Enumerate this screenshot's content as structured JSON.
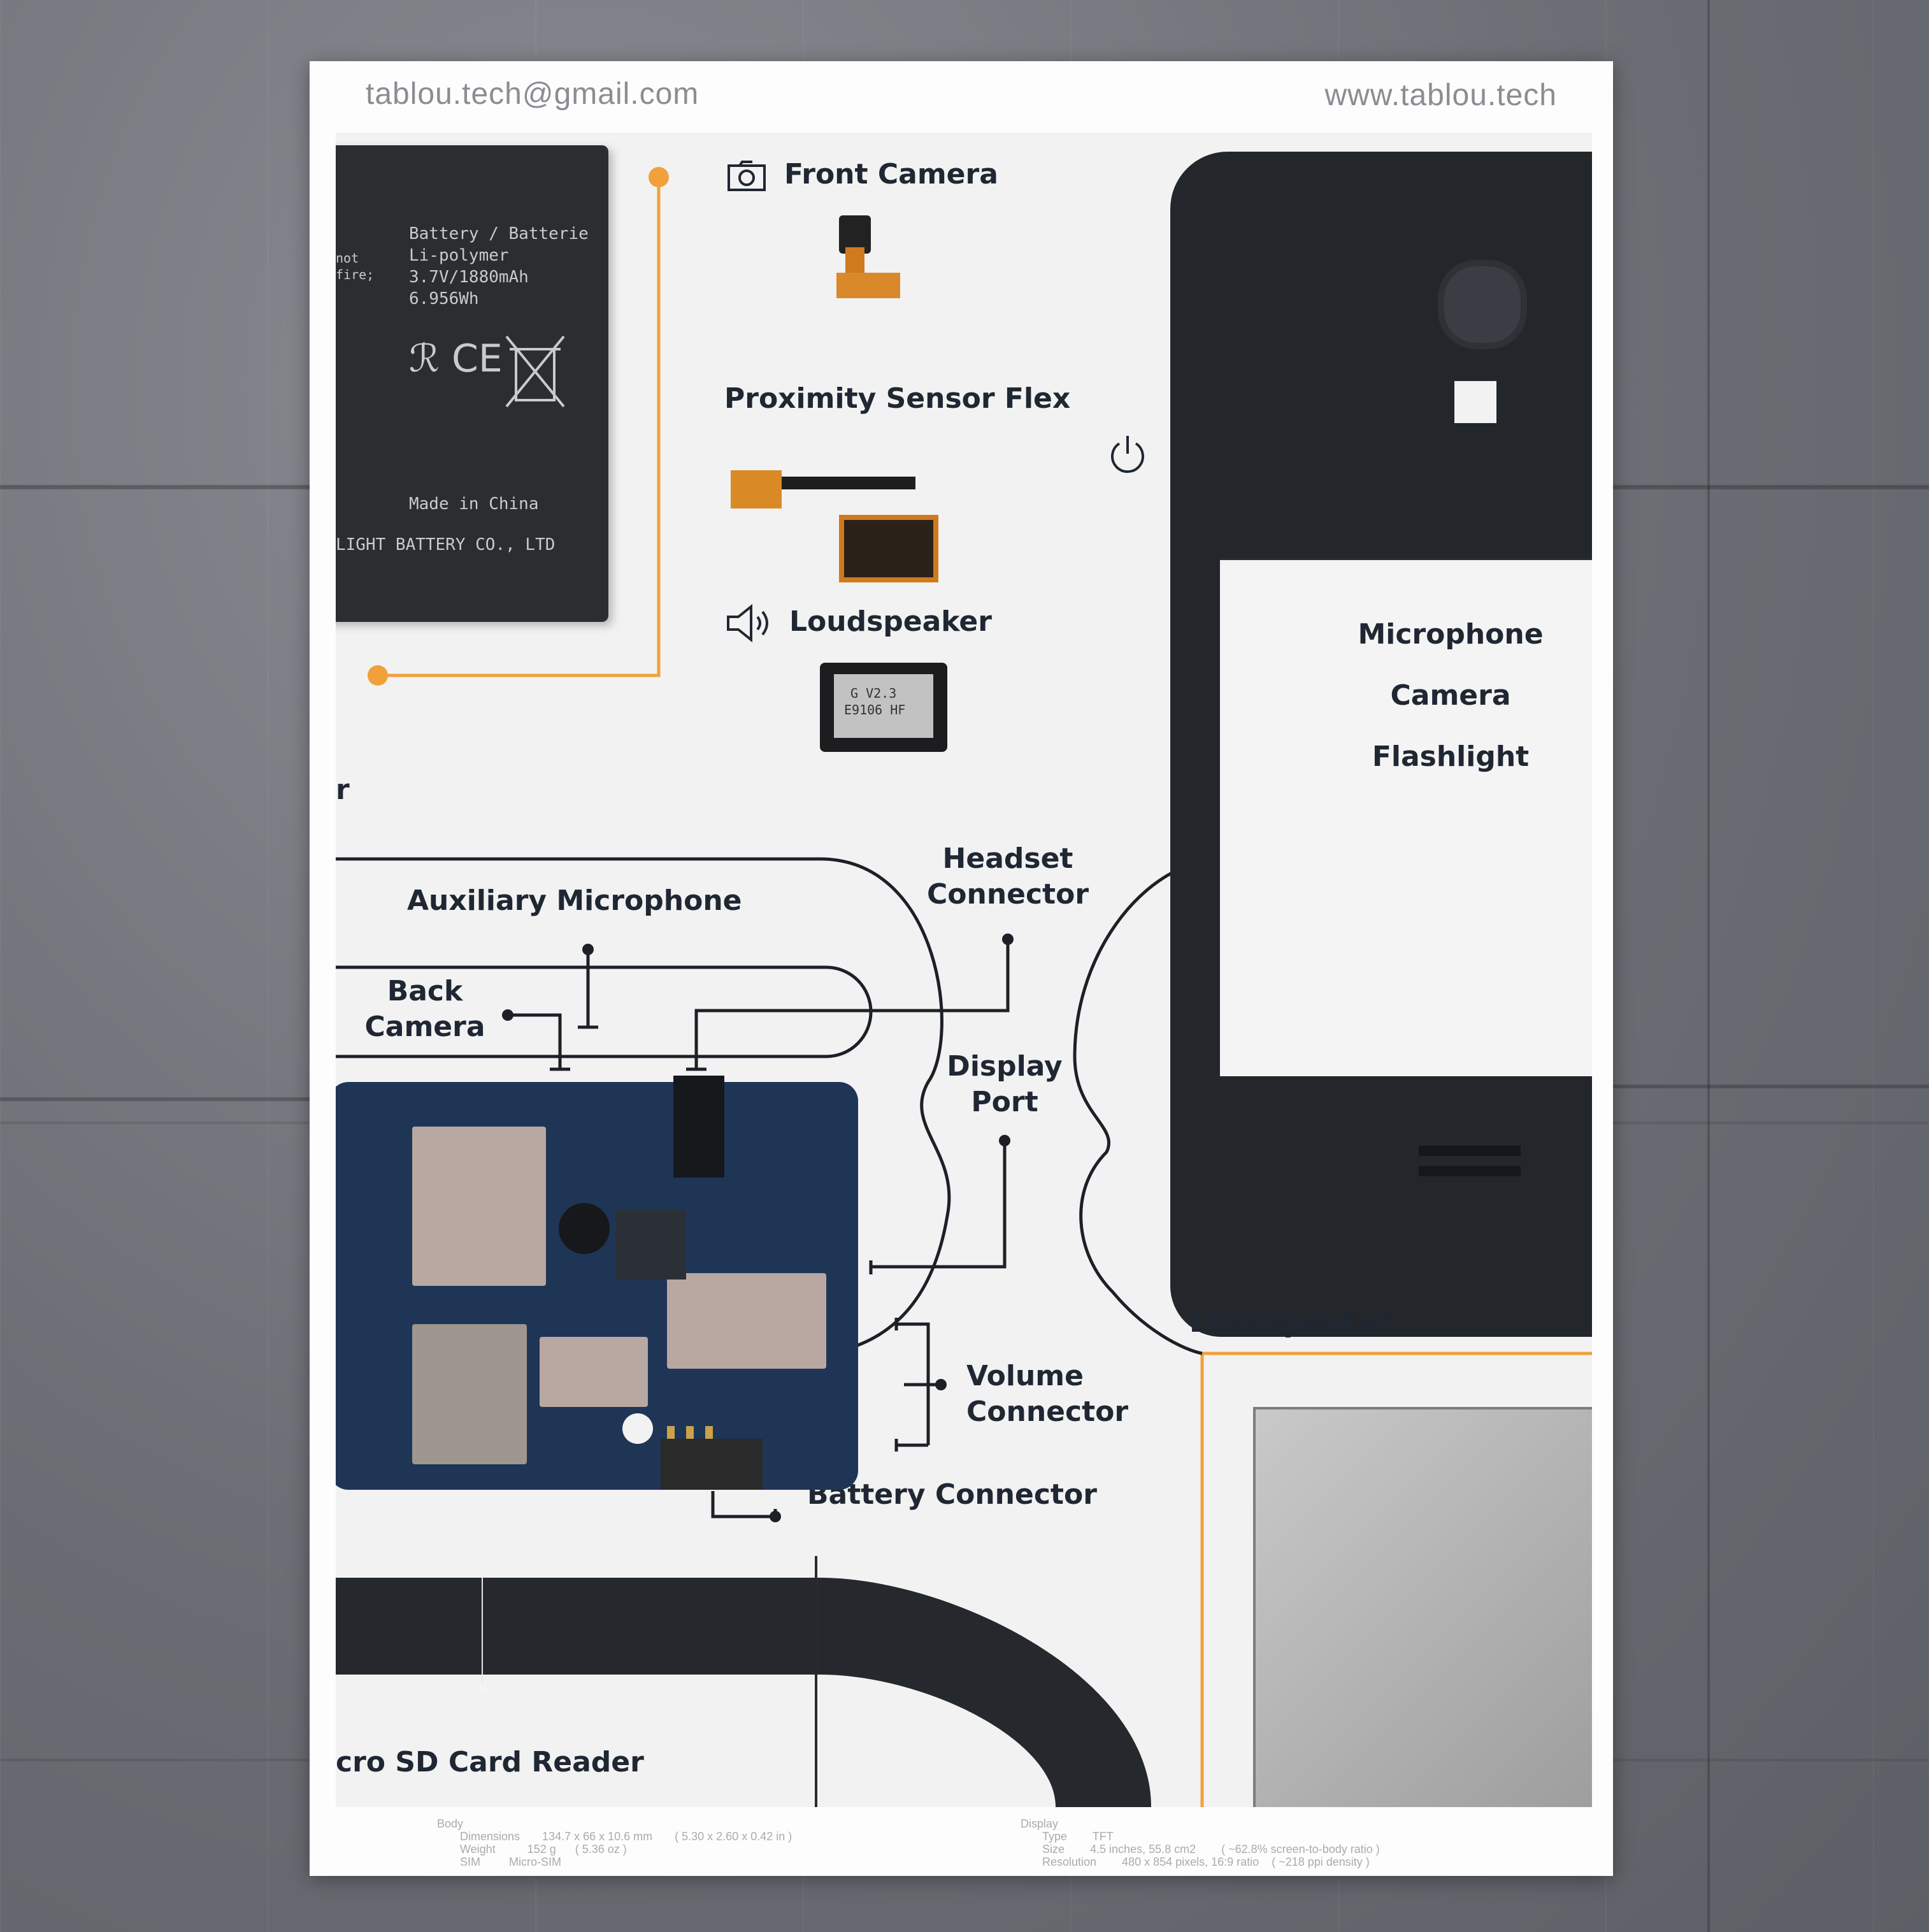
{
  "poster": {
    "email": "tablou.tech@gmail.com",
    "website": "www.tablou.tech"
  },
  "battery": {
    "title": "Battery / Batterie",
    "type": "Li-polymer",
    "voltage": "3.7V/1880mAh",
    "energy": "6.956Wh",
    "origin": "Made in China",
    "maker": "LIGHT BATTERY CO., LTD",
    "side_text_1": "not",
    "side_text_2": "fire;"
  },
  "labels": {
    "front_camera": "Front Camera",
    "proximity_sensor": "Proximity Sensor Flex",
    "loudspeaker_top": "Loudspeaker",
    "microphone": "Microphone",
    "camera": "Camera",
    "flashlight": "Flashlight",
    "headset_line1": "Headset",
    "headset_line2": "Connector",
    "aux_mic": "Auxiliary Microphone",
    "back_line1": "Back",
    "back_line2": "Camera",
    "display_line1": "Display",
    "display_line2": "Port",
    "loudspeaker_bottom": "Loudspeaker",
    "volume_line1": "Volume",
    "volume_line2": "Connector",
    "battery_connector": "Battery Connector",
    "sd_reader": "cro SD Card Reader",
    "left_cut": "r"
  },
  "speaker_part": {
    "line1": "G V2.3",
    "line2": "E9106 HF"
  },
  "footer": {
    "body_title": "Body",
    "body_lines": [
      "Dimensions       134.7 x 66 x 10.6 mm       ( 5.30 x 2.60 x 0.42 in )",
      "Weight          152 g      ( 5.36 oz )",
      "SIM         Micro-SIM"
    ],
    "display_title": "Display",
    "display_lines": [
      "Type        TFT",
      "Size        4.5 inches, 55.8 cm2        ( ~62.8% screen-to-body ratio )",
      "Resolution        480 x 854 pixels, 16:9 ratio    ( ~218 ppi density )"
    ]
  },
  "colors": {
    "accent_orange": "#f0a13a",
    "ink": "#1f2733",
    "poster": "#fdfdfd"
  }
}
